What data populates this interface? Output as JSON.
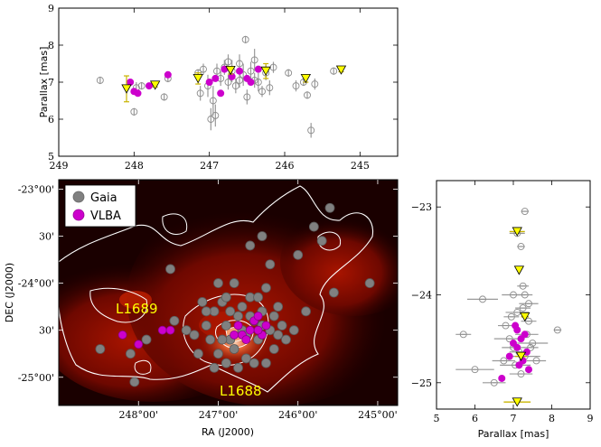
{
  "colors": {
    "gaia_edge": "#8c8c8c",
    "gaia_fill": "#808080",
    "vlba": "#cc00cc",
    "yellow": "#ffff00",
    "yellow_err": "#c8b400",
    "contour": "#ffffff",
    "map_dark": "#1a0000",
    "map_red": "#8b0a00"
  },
  "chart_data": [
    {
      "id": "top",
      "type": "scatter",
      "xlabel": "",
      "ylabel": "Parallax [mas]",
      "xlim": [
        249,
        244.5
      ],
      "ylim": [
        5,
        9
      ],
      "xticks": [
        "249",
        "248",
        "247",
        "246",
        "245"
      ],
      "xtick_values": [
        249,
        248,
        247,
        246,
        245
      ],
      "yticks": [
        "5",
        "6",
        "7",
        "8",
        "9"
      ],
      "ytick_values": [
        5,
        6,
        7,
        8,
        9
      ],
      "series": [
        {
          "name": "Gaia",
          "points": [
            [
              248.45,
              7.05,
              0.1
            ],
            [
              248.0,
              6.2,
              0.1
            ],
            [
              247.97,
              6.85,
              0.15
            ],
            [
              247.9,
              6.9,
              0.1
            ],
            [
              247.6,
              6.6,
              0.1
            ],
            [
              247.55,
              7.1,
              0.1
            ],
            [
              247.15,
              7.25,
              0.1
            ],
            [
              247.12,
              6.7,
              0.2
            ],
            [
              247.08,
              7.35,
              0.15
            ],
            [
              247.02,
              6.9,
              0.3
            ],
            [
              246.98,
              6.0,
              0.3
            ],
            [
              246.95,
              6.5,
              0.4
            ],
            [
              246.92,
              6.1,
              0.3
            ],
            [
              246.9,
              7.3,
              0.2
            ],
            [
              246.85,
              7.1,
              0.2
            ],
            [
              246.8,
              7.4,
              0.2
            ],
            [
              246.75,
              7.0,
              0.2
            ],
            [
              246.7,
              7.3,
              0.3
            ],
            [
              246.65,
              6.9,
              0.2
            ],
            [
              246.6,
              7.5,
              0.25
            ],
            [
              246.55,
              7.2,
              0.3
            ],
            [
              246.52,
              8.15,
              0.1
            ],
            [
              246.5,
              6.6,
              0.2
            ],
            [
              246.45,
              7.3,
              0.25
            ],
            [
              246.4,
              7.6,
              0.3
            ],
            [
              246.35,
              7.0,
              0.25
            ],
            [
              246.3,
              6.75,
              0.15
            ],
            [
              246.25,
              7.25,
              0.2
            ],
            [
              246.2,
              6.85,
              0.2
            ],
            [
              246.15,
              7.4,
              0.15
            ],
            [
              245.95,
              7.25,
              0.1
            ],
            [
              245.85,
              6.9,
              0.15
            ],
            [
              245.75,
              7.0,
              0.1
            ],
            [
              245.7,
              6.65,
              0.1
            ],
            [
              245.65,
              5.7,
              0.2
            ],
            [
              245.6,
              6.95,
              0.15
            ],
            [
              245.35,
              7.3,
              0.1
            ],
            [
              246.6,
              7.05,
              0.2
            ],
            [
              246.75,
              7.55,
              0.2
            ],
            [
              246.4,
              7.05,
              0.2
            ]
          ]
        },
        {
          "name": "VLBA",
          "points": [
            [
              248.05,
              7.0
            ],
            [
              248.0,
              6.75
            ],
            [
              247.95,
              6.7
            ],
            [
              247.8,
              6.9
            ],
            [
              247.55,
              7.2
            ],
            [
              247.0,
              7.0
            ],
            [
              246.92,
              7.1
            ],
            [
              246.85,
              6.7
            ],
            [
              246.8,
              7.35
            ],
            [
              246.7,
              7.15
            ],
            [
              246.6,
              7.3
            ],
            [
              246.5,
              7.1
            ],
            [
              246.45,
              7.0
            ],
            [
              246.35,
              7.35
            ]
          ]
        },
        {
          "name": "Yellow",
          "points": [
            [
              248.1,
              6.82,
              0.35
            ],
            [
              247.72,
              6.92,
              0.05
            ],
            [
              247.15,
              7.1,
              0.15
            ],
            [
              246.72,
              7.32,
              0.1
            ],
            [
              246.25,
              7.3,
              0.2
            ],
            [
              245.72,
              7.1,
              0.1
            ],
            [
              245.25,
              7.33,
              0.05
            ]
          ]
        }
      ]
    },
    {
      "id": "map",
      "type": "scatter",
      "xlabel": "RA (J2000)",
      "ylabel": "DEC (J2000)",
      "xlim": [
        249,
        244.75
      ],
      "ylim": [
        -25.3,
        -22.9
      ],
      "xticks": [
        "248°00'",
        "247°00'",
        "246°00'",
        "245°00'"
      ],
      "xtick_values": [
        248,
        247,
        246,
        245
      ],
      "yticks": [
        "-23°00'",
        "30'",
        "-24°00'",
        "30'",
        "-25°00'"
      ],
      "ytick_values": [
        -23,
        -23.5,
        -24,
        -24.5,
        -25
      ],
      "legend": [
        {
          "name": "Gaia",
          "label": "Gaia"
        },
        {
          "name": "VLBA",
          "label": "VLBA"
        }
      ],
      "annotations": [
        {
          "text": "L1689",
          "x": 248.6,
          "y": -24.2
        },
        {
          "text": "L1688",
          "x": 246.55,
          "y": -25.12
        }
      ],
      "series": [
        {
          "name": "Gaia",
          "points": [
            [
              248.48,
              -24.7
            ],
            [
              248.1,
              -24.75
            ],
            [
              248.05,
              -25.05
            ],
            [
              247.9,
              -24.6
            ],
            [
              247.55,
              -24.4
            ],
            [
              247.3,
              -24.55
            ],
            [
              247.25,
              -24.75
            ],
            [
              247.2,
              -24.2
            ],
            [
              247.15,
              -24.45
            ],
            [
              247.1,
              -24.6
            ],
            [
              247.05,
              -24.3
            ],
            [
              247.0,
              -24.75
            ],
            [
              246.95,
              -24.2
            ],
            [
              246.9,
              -24.45
            ],
            [
              246.85,
              -24.6
            ],
            [
              246.8,
              -24.0
            ],
            [
              246.75,
              -24.35
            ],
            [
              246.7,
              -24.5
            ],
            [
              246.65,
              -24.8
            ],
            [
              246.6,
              -24.15
            ],
            [
              246.55,
              -24.4
            ],
            [
              246.5,
              -24.6
            ],
            [
              246.45,
              -24.3
            ],
            [
              246.4,
              -24.05
            ],
            [
              246.35,
              -24.5
            ],
            [
              246.3,
              -24.7
            ],
            [
              246.25,
              -24.25
            ],
            [
              246.2,
              -24.45
            ],
            [
              246.6,
              -23.6
            ],
            [
              246.35,
              -23.8
            ],
            [
              246.45,
              -23.5
            ],
            [
              246.0,
              -23.7
            ],
            [
              245.8,
              -23.4
            ],
            [
              245.7,
              -23.55
            ],
            [
              245.6,
              -23.2
            ],
            [
              245.55,
              -24.1
            ],
            [
              245.1,
              -24.0
            ],
            [
              247.6,
              -23.85
            ],
            [
              247.0,
              -24.0
            ],
            [
              246.9,
              -24.85
            ],
            [
              246.75,
              -24.9
            ],
            [
              246.55,
              -24.85
            ],
            [
              247.4,
              -24.5
            ],
            [
              246.95,
              -24.6
            ],
            [
              246.7,
              -24.25
            ],
            [
              246.5,
              -24.15
            ],
            [
              246.85,
              -24.3
            ],
            [
              246.65,
              -24.55
            ],
            [
              246.3,
              -24.35
            ],
            [
              246.15,
              -24.6
            ],
            [
              247.05,
              -24.9
            ],
            [
              246.4,
              -24.85
            ],
            [
              246.8,
              -24.7
            ],
            [
              246.6,
              -24.35
            ],
            [
              246.45,
              -24.45
            ],
            [
              246.9,
              -24.15
            ],
            [
              247.15,
              -24.3
            ],
            [
              246.25,
              -24.55
            ],
            [
              246.05,
              -24.5
            ],
            [
              245.9,
              -24.3
            ]
          ]
        },
        {
          "name": "VLBA",
          "points": [
            [
              248.2,
              -24.55
            ],
            [
              248.0,
              -24.65
            ],
            [
              247.7,
              -24.5
            ],
            [
              247.6,
              -24.5
            ],
            [
              246.75,
              -24.45
            ],
            [
              246.7,
              -24.55
            ],
            [
              246.6,
              -24.5
            ],
            [
              246.55,
              -24.4
            ],
            [
              246.5,
              -24.35
            ],
            [
              246.45,
              -24.55
            ],
            [
              246.4,
              -24.45
            ],
            [
              246.65,
              -24.6
            ],
            [
              246.8,
              -24.55
            ],
            [
              246.5,
              -24.5
            ]
          ]
        }
      ]
    },
    {
      "id": "side",
      "type": "scatter",
      "xlabel": "Parallax [mas]",
      "ylabel": "",
      "xlim": [
        5,
        9
      ],
      "ylim": [
        -25.3,
        -22.7
      ],
      "xticks": [
        "5",
        "6",
        "7",
        "8",
        "9"
      ],
      "xtick_values": [
        5,
        6,
        7,
        8,
        9
      ],
      "yticks": [
        "−23",
        "−24",
        "−25"
      ],
      "ytick_values": [
        -23,
        -24,
        -25
      ],
      "series": [
        {
          "name": "Gaia",
          "points": [
            [
              7.1,
              -23.3,
              0.2
            ],
            [
              7.3,
              -23.05,
              0.1
            ],
            [
              7.2,
              -23.45,
              0.1
            ],
            [
              7.25,
              -23.9,
              0.15
            ],
            [
              7.0,
              -24.0,
              0.3
            ],
            [
              6.2,
              -24.05,
              0.4
            ],
            [
              7.3,
              -24.0,
              0.2
            ],
            [
              7.4,
              -24.1,
              0.25
            ],
            [
              7.1,
              -24.2,
              0.3
            ],
            [
              5.7,
              -24.45,
              0.2
            ],
            [
              8.15,
              -24.4,
              0.1
            ],
            [
              6.9,
              -24.5,
              0.4
            ],
            [
              7.5,
              -24.55,
              0.4
            ],
            [
              7.0,
              -24.6,
              0.3
            ],
            [
              7.3,
              -24.7,
              0.4
            ],
            [
              6.0,
              -24.85,
              0.5
            ],
            [
              6.5,
              -25.0,
              0.3
            ],
            [
              7.2,
              -24.9,
              0.3
            ],
            [
              6.8,
              -24.35,
              0.2
            ],
            [
              7.35,
              -24.45,
              0.3
            ],
            [
              7.05,
              -24.8,
              0.4
            ],
            [
              7.4,
              -24.3,
              0.2
            ],
            [
              7.15,
              -24.65,
              0.25
            ],
            [
              6.75,
              -24.75,
              0.3
            ],
            [
              7.25,
              -24.15,
              0.2
            ],
            [
              7.45,
              -24.6,
              0.2
            ],
            [
              6.95,
              -24.25,
              0.2
            ],
            [
              7.6,
              -24.75,
              0.25
            ]
          ]
        },
        {
          "name": "VLBA",
          "points": [
            [
              7.0,
              -24.55
            ],
            [
              7.2,
              -24.5
            ],
            [
              7.1,
              -24.6
            ],
            [
              7.3,
              -24.45
            ],
            [
              6.9,
              -24.7
            ],
            [
              7.35,
              -24.65
            ],
            [
              7.15,
              -24.8
            ],
            [
              6.7,
              -24.95
            ],
            [
              7.05,
              -24.35
            ],
            [
              7.25,
              -24.75
            ],
            [
              7.4,
              -24.85
            ],
            [
              7.1,
              -24.4
            ]
          ]
        },
        {
          "name": "Yellow",
          "points": [
            [
              7.1,
              -23.28,
              0.2
            ],
            [
              7.15,
              -23.72,
              0.05
            ],
            [
              7.3,
              -24.25,
              0.1
            ],
            [
              7.2,
              -24.7,
              0.15
            ],
            [
              7.1,
              -25.22,
              0.35
            ]
          ]
        }
      ]
    }
  ]
}
